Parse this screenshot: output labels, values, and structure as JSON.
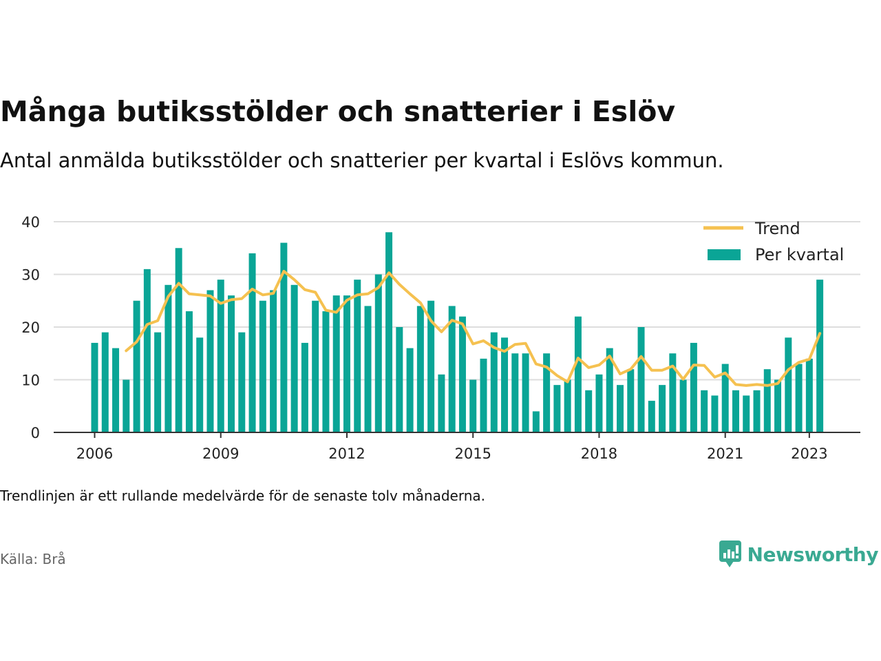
{
  "title": "Många butiksstölder och snatterier i Eslöv",
  "subtitle": "Antal anmälda butiksstölder och snatterier per kvartal i Eslövs kommun.",
  "note": "Trendlinjen är ett rullande medelvärde för de senaste tolv månaderna.",
  "source": "Källa: Brå",
  "logo_text": "Newsworthy",
  "colors": {
    "bars": "#0aa596",
    "trend": "#f5c150",
    "logo": "#3aa992",
    "grid": "#dddddd",
    "axis": "#333333"
  },
  "chart_data": {
    "type": "bar",
    "x_start": "2006 Q1",
    "x_ticks": [
      "2006",
      "2009",
      "2012",
      "2015",
      "2018",
      "2021",
      "2023"
    ],
    "ylim": [
      0,
      40
    ],
    "y_ticks": [
      0,
      10,
      20,
      30,
      40
    ],
    "grid": true,
    "legend_position": "top-right",
    "series": [
      {
        "name": "Per kvartal",
        "type": "bar",
        "values": [
          17,
          19,
          16,
          10,
          25,
          31,
          19,
          28,
          35,
          23,
          18,
          27,
          29,
          26,
          19,
          34,
          25,
          27,
          36,
          28,
          17,
          25,
          23,
          26,
          26,
          29,
          24,
          30,
          38,
          20,
          16,
          24,
          25,
          11,
          24,
          22,
          10,
          14,
          19,
          18,
          15,
          15,
          4,
          15,
          9,
          10,
          22,
          8,
          11,
          16,
          9,
          12,
          20,
          6,
          9,
          15,
          10,
          17,
          8,
          7,
          13,
          8,
          7,
          8,
          12,
          10,
          18,
          13,
          14,
          29
        ]
      },
      {
        "name": "Trend",
        "type": "line",
        "values": [
          null,
          null,
          null,
          15.5,
          17.2,
          20.5,
          21.2,
          25.8,
          28.3,
          26.3,
          26.1,
          25.9,
          24.5,
          25.2,
          25.4,
          27.2,
          26.1,
          26.4,
          30.6,
          29.0,
          27.1,
          26.6,
          23.2,
          22.8,
          25.1,
          26.1,
          26.3,
          27.5,
          30.3,
          28.1,
          26.3,
          24.6,
          21.2,
          19.1,
          21.3,
          20.6,
          16.8,
          17.4,
          16.1,
          15.4,
          16.7,
          16.9,
          13.0,
          12.4,
          10.8,
          9.6,
          14.1,
          12.3,
          12.8,
          14.5,
          11.1,
          12.0,
          14.4,
          11.8,
          11.8,
          12.6,
          10.1,
          12.8,
          12.7,
          10.5,
          11.3,
          9.1,
          8.9,
          9.1,
          8.9,
          9.3,
          11.9,
          13.3,
          13.9,
          18.8
        ]
      }
    ]
  }
}
